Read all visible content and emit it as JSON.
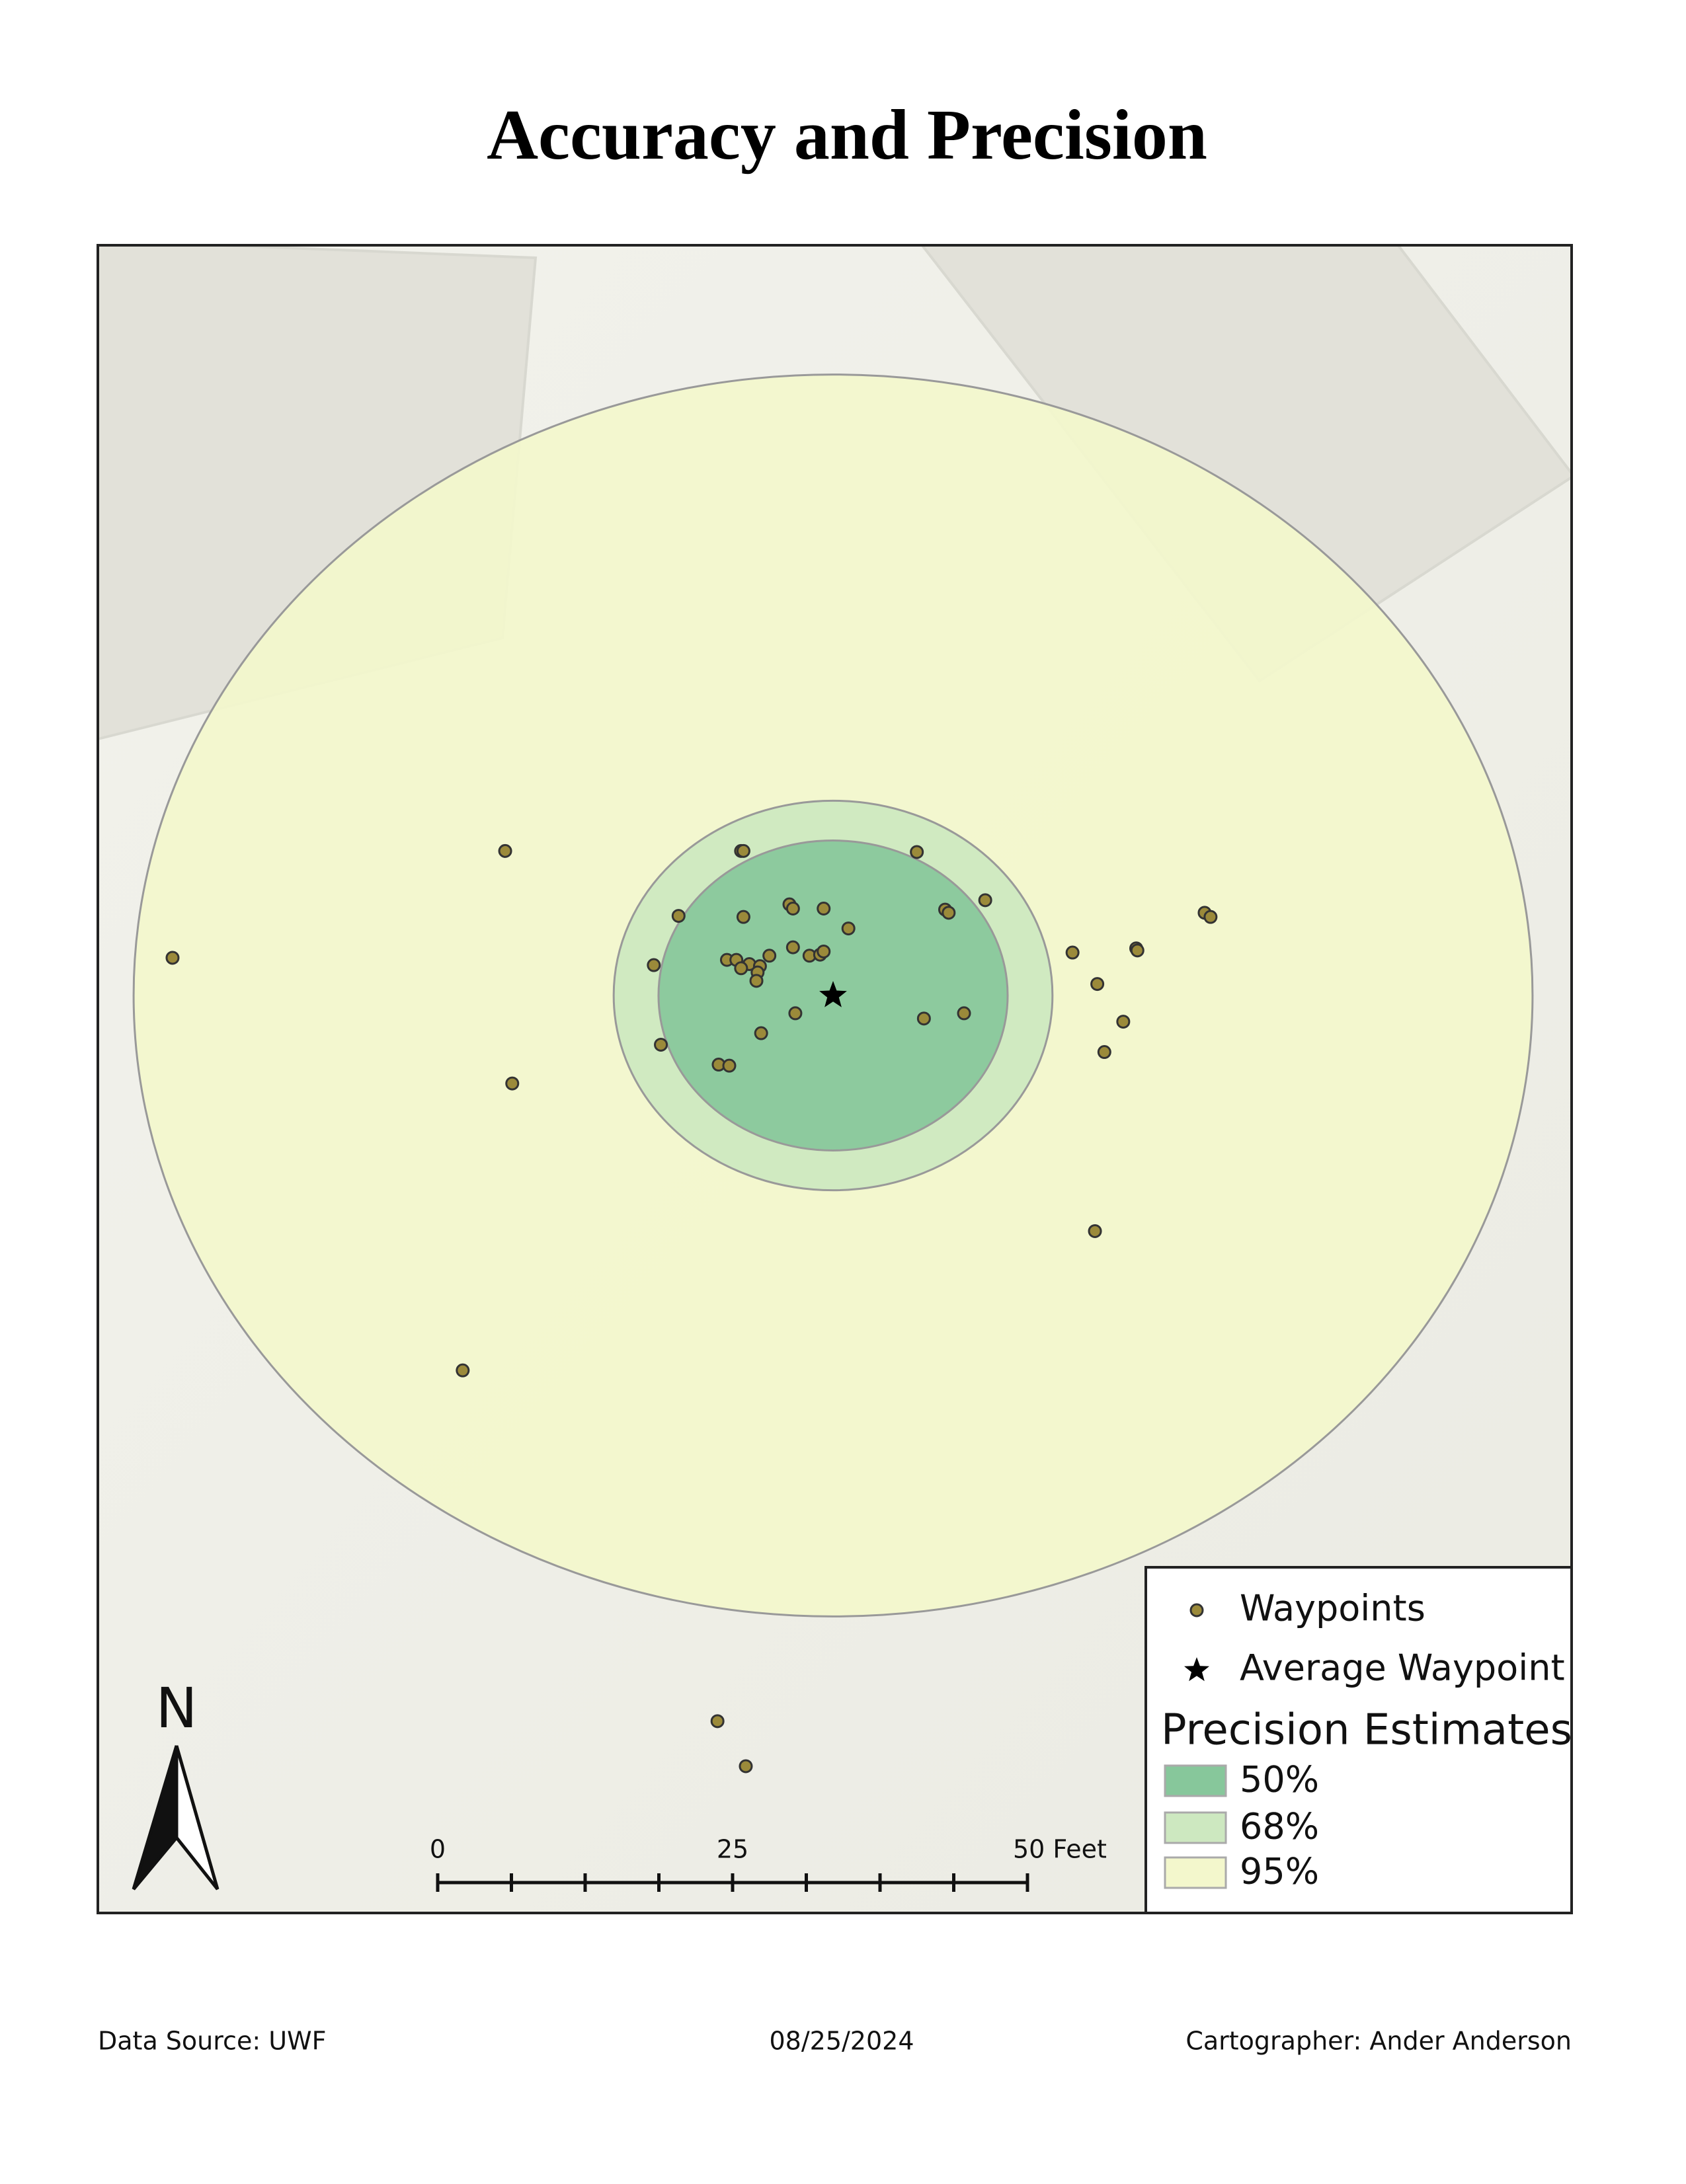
{
  "title": "Accuracy and Precision",
  "map": {
    "waypoints": [
      [
        -27.8,
        13.8
      ],
      [
        -56.0,
        3.6
      ],
      [
        -27.2,
        -8.4
      ],
      [
        -31.4,
        -35.8
      ],
      [
        -7.8,
        13.8
      ],
      [
        -7.6,
        13.8
      ],
      [
        7.1,
        13.7
      ],
      [
        -13.1,
        7.6
      ],
      [
        -7.6,
        7.5
      ],
      [
        -3.7,
        8.7
      ],
      [
        -3.4,
        8.3
      ],
      [
        -0.8,
        8.3
      ],
      [
        1.3,
        6.4
      ],
      [
        9.5,
        8.2
      ],
      [
        9.8,
        7.9
      ],
      [
        12.9,
        9.1
      ],
      [
        -15.2,
        2.9
      ],
      [
        -9.0,
        3.4
      ],
      [
        -8.2,
        3.4
      ],
      [
        -7.1,
        3.0
      ],
      [
        -7.8,
        2.6
      ],
      [
        -6.2,
        2.8
      ],
      [
        -6.4,
        2.2
      ],
      [
        -6.5,
        1.4
      ],
      [
        -5.4,
        3.8
      ],
      [
        -3.4,
        4.6
      ],
      [
        -2.0,
        3.8
      ],
      [
        -1.1,
        3.9
      ],
      [
        -0.8,
        4.2
      ],
      [
        -3.2,
        -1.7
      ],
      [
        -6.1,
        -3.6
      ],
      [
        -14.6,
        -4.7
      ],
      [
        -9.7,
        -6.6
      ],
      [
        -8.8,
        -6.7
      ],
      [
        7.7,
        -2.2
      ],
      [
        11.1,
        -1.7
      ],
      [
        20.3,
        4.1
      ],
      [
        22.4,
        1.1
      ],
      [
        25.7,
        4.5
      ],
      [
        25.8,
        4.3
      ],
      [
        24.6,
        -2.5
      ],
      [
        23.0,
        -5.4
      ],
      [
        31.5,
        7.9
      ],
      [
        32.0,
        7.5
      ],
      [
        22.2,
        -22.5
      ],
      [
        -9.8,
        -69.3
      ],
      [
        -7.4,
        -73.6
      ]
    ],
    "waypoint_color": "#9b8a3a",
    "precision_estimates": [
      {
        "label": "50%",
        "radius_ft": 14.8,
        "color": "#87c79b"
      },
      {
        "label": "68%",
        "radius_ft": 18.6,
        "color": "#cde8c0"
      },
      {
        "label": "95%",
        "radius_ft": 59.3,
        "color": "#f3f7cc"
      }
    ]
  },
  "legend": {
    "waypoints": "Waypoints",
    "average": "Average Waypoint",
    "heading": "Precision Estimates"
  },
  "scale_bar": {
    "ticks": [
      0,
      6.25,
      12.5,
      18.75,
      25,
      31.25,
      37.5,
      43.75,
      50
    ],
    "labels": [
      0,
      25,
      {
        "value": 50,
        "label": "50 Feet"
      }
    ]
  },
  "north": "N",
  "footer": {
    "source": "Data Source: UWF",
    "date": "08/25/2024",
    "cartographer": "Cartographer: Ander Anderson"
  }
}
